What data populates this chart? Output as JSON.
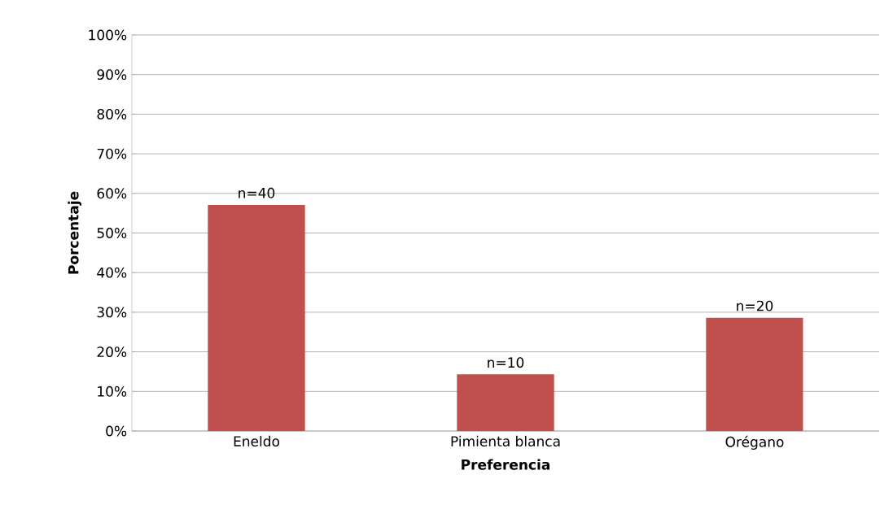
{
  "chart_data": {
    "type": "bar",
    "xlabel": "Preferencia",
    "ylabel": "Porcentaje",
    "categories": [
      "Eneldo",
      "Pimienta blanca",
      "Orégano"
    ],
    "values": [
      57.1,
      14.3,
      28.6
    ],
    "color": "#c0504d",
    "annotations": [
      {
        "text": "n=40",
        "x": "Eneldo",
        "y": 57.1
      },
      {
        "text": "n=10",
        "x": "Pimienta blanca",
        "y": 14.3
      },
      {
        "text": "n=20",
        "x": "Orégano",
        "y": 28.6
      }
    ],
    "ylim": [
      0,
      100
    ],
    "yticks": [
      {
        "value": 0,
        "label": "0%"
      },
      {
        "value": 10,
        "label": "10%"
      },
      {
        "value": 20,
        "label": "20%"
      },
      {
        "value": 30,
        "label": "30%"
      },
      {
        "value": 40,
        "label": "40%"
      },
      {
        "value": 50,
        "label": "50%"
      },
      {
        "value": 60,
        "label": "60%"
      },
      {
        "value": 70,
        "label": "70%"
      },
      {
        "value": 80,
        "label": "80%"
      },
      {
        "value": 90,
        "label": "90%"
      },
      {
        "value": 100,
        "label": "100%"
      }
    ],
    "grid": "y"
  }
}
